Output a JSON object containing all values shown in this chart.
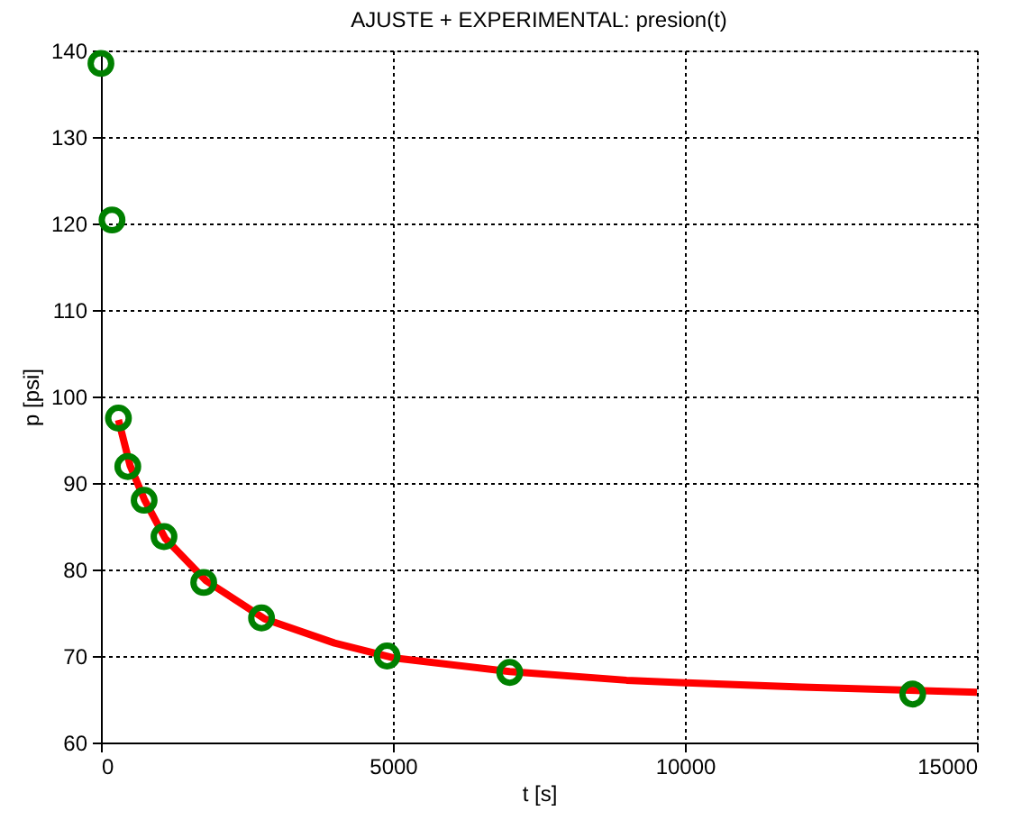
{
  "chart_data": {
    "type": "scatter",
    "title": "AJUSTE + EXPERIMENTAL:    presion(t)",
    "xlabel": "t [s]",
    "ylabel": "p [psi]",
    "xlim": [
      0,
      15000
    ],
    "xticks": [
      0,
      5000,
      10000,
      15000
    ],
    "ylim": [
      60,
      140
    ],
    "yticks": [
      60,
      70,
      80,
      90,
      100,
      110,
      120,
      130,
      140
    ],
    "grid": true,
    "series": [
      {
        "type": "line",
        "color": "#ff0000",
        "line_style": "solid",
        "x": [
          300,
          500,
          750,
          1100,
          1800,
          2800,
          4000,
          5000,
          7000,
          9000,
          10000,
          12000,
          15000
        ],
        "values": [
          97.3,
          92,
          88,
          83.6,
          78.7,
          74.3,
          71.5,
          69.8,
          68.2,
          67.2,
          66.9,
          66.4,
          65.8
        ]
      },
      {
        "color": "#008000",
        "marker": "circle",
        "x": [
          0,
          190,
          300,
          460,
          740,
          1080,
          1760,
          2750,
          4900,
          7000,
          13900
        ],
        "values": [
          138.5,
          120.4,
          97.5,
          91.9,
          88,
          83.8,
          78.5,
          74.4,
          70,
          68.1,
          65.6
        ]
      }
    ]
  }
}
